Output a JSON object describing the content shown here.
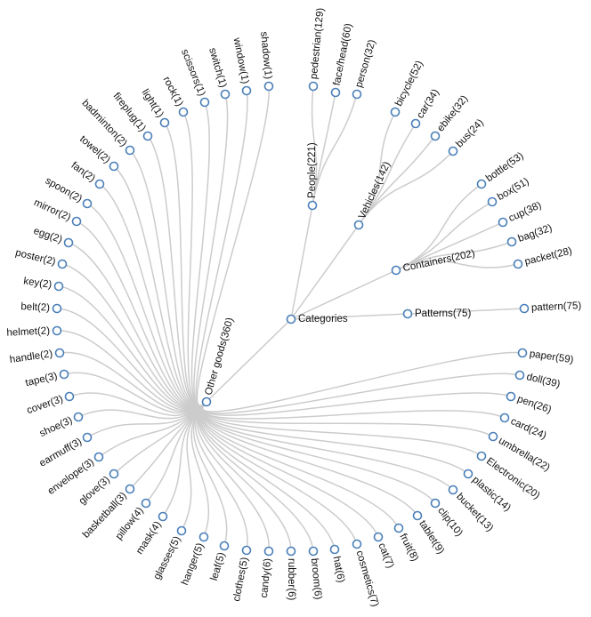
{
  "tree": {
    "name": "Categories",
    "children": [
      {
        "name": "People(221)",
        "children": [
          {
            "name": "pedestrian(129)"
          },
          {
            "name": "face/head(60)"
          },
          {
            "name": "person(32)"
          }
        ]
      },
      {
        "name": "Vehicles(142)",
        "children": [
          {
            "name": "bicycle(52)"
          },
          {
            "name": "car(34)"
          },
          {
            "name": "ebike(32)"
          },
          {
            "name": "bus(24)"
          }
        ]
      },
      {
        "name": "Containers(202)",
        "children": [
          {
            "name": "bottle(53)"
          },
          {
            "name": "box(51)"
          },
          {
            "name": "cup(38)"
          },
          {
            "name": "bag(32)"
          },
          {
            "name": "packet(28)"
          }
        ]
      },
      {
        "name": "Patterns(75)",
        "children": [
          {
            "name": "pattern(75)"
          }
        ]
      },
      {
        "name": "Other goods(360)",
        "children": [
          {
            "name": "paper(59)"
          },
          {
            "name": "doll(39)"
          },
          {
            "name": "pen(26)"
          },
          {
            "name": "card(24)"
          },
          {
            "name": "umbrella(22)"
          },
          {
            "name": "Electronic(20)"
          },
          {
            "name": "plastic(14)"
          },
          {
            "name": "bucket(13)"
          },
          {
            "name": "clip(10)"
          },
          {
            "name": "tablet(9)"
          },
          {
            "name": "fruit(8)"
          },
          {
            "name": "cat(7)"
          },
          {
            "name": "cosmetics(7)"
          },
          {
            "name": "hat(6)"
          },
          {
            "name": "broom(6)"
          },
          {
            "name": "rubber(6)"
          },
          {
            "name": "candy(6)"
          },
          {
            "name": "clothes(5)"
          },
          {
            "name": "leaf(5)"
          },
          {
            "name": "hanger(5)"
          },
          {
            "name": "glasses(5)"
          },
          {
            "name": "mask(4)"
          },
          {
            "name": "pillow(4)"
          },
          {
            "name": "basketball(3)"
          },
          {
            "name": "glove(3)"
          },
          {
            "name": "envelope(3)"
          },
          {
            "name": "earmuff(3)"
          },
          {
            "name": "shoe(3)"
          },
          {
            "name": "cover(3)"
          },
          {
            "name": "tape(3)"
          },
          {
            "name": "handle(2)"
          },
          {
            "name": "helmet(2)"
          },
          {
            "name": "belt(2)"
          },
          {
            "name": "key(2)"
          },
          {
            "name": "poster(2)"
          },
          {
            "name": "egg(2)"
          },
          {
            "name": "mirror(2)"
          },
          {
            "name": "spoon(2)"
          },
          {
            "name": "fan(2)"
          },
          {
            "name": "towel(2)"
          },
          {
            "name": "badminton(2)"
          },
          {
            "name": "fireplug(1)"
          },
          {
            "name": "light(1)"
          },
          {
            "name": "rock(1)"
          },
          {
            "name": "scissors(1)"
          },
          {
            "name": "switch(1)"
          },
          {
            "name": "window(1)"
          },
          {
            "name": "shadow(1)"
          }
        ]
      }
    ]
  }
}
